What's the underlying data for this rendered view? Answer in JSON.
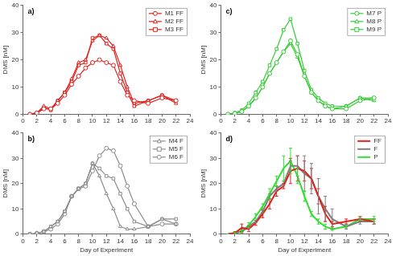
{
  "chart_data": [
    {
      "type": "line",
      "title": "a)",
      "y_label": "DMS [nM]",
      "x": [
        1,
        2,
        3,
        4,
        5,
        6,
        7,
        8,
        9,
        10,
        11,
        12,
        13,
        14,
        15,
        16,
        18,
        20,
        22
      ],
      "series": [
        {
          "name": "M1 FF",
          "color": "#e0201b",
          "marker": "circle",
          "line_style": "solid",
          "values": [
            0,
            0.5,
            2,
            2,
            4,
            7,
            11,
            14,
            17,
            19,
            20,
            19,
            18,
            12,
            7,
            5,
            4,
            6,
            5
          ]
        },
        {
          "name": "M2 FF",
          "color": "#e0201b",
          "marker": "triangle",
          "line_style": "solid",
          "values": [
            0,
            0.5,
            3,
            2,
            5,
            8,
            13,
            19,
            20,
            27,
            29,
            28,
            25,
            18,
            10,
            4,
            5,
            7,
            4
          ]
        },
        {
          "name": "M3 FF",
          "color": "#e0201b",
          "marker": "square",
          "line_style": "solid",
          "values": [
            0,
            0.3,
            2.5,
            1.5,
            5,
            8,
            12,
            18,
            19,
            28,
            29,
            26,
            24,
            15,
            8,
            3,
            5,
            7,
            5
          ]
        }
      ],
      "xlim": [
        0,
        24
      ],
      "xticks": [
        0,
        2,
        4,
        6,
        8,
        10,
        12,
        14,
        16,
        18,
        20,
        22,
        24
      ],
      "ylim": [
        0,
        40
      ],
      "yticks": [
        0,
        10,
        20,
        30,
        40
      ],
      "grid": false,
      "legend": "upper right"
    },
    {
      "type": "line",
      "title": "c)",
      "y_label": "DMS [nM]",
      "x": [
        1,
        2,
        3,
        4,
        5,
        6,
        7,
        8,
        9,
        10,
        11,
        12,
        13,
        14,
        15,
        16,
        18,
        20,
        22
      ],
      "series": [
        {
          "name": "M7 P",
          "color": "#33cc33",
          "marker": "circle",
          "line_style": "solid",
          "values": [
            0,
            0.3,
            1,
            3,
            6,
            10,
            15,
            19,
            23,
            27,
            22,
            14,
            8,
            5,
            3,
            2,
            2,
            5,
            6
          ]
        },
        {
          "name": "M8 P",
          "color": "#33cc33",
          "marker": "triangle",
          "line_style": "solid",
          "values": [
            0,
            0.3,
            1,
            3,
            6,
            10,
            15,
            19,
            23,
            26,
            21,
            14,
            8,
            5,
            3,
            2,
            3,
            6,
            5
          ]
        },
        {
          "name": "M9 P",
          "color": "#33cc33",
          "marker": "square",
          "line_style": "solid",
          "values": [
            0,
            0.5,
            1.5,
            4,
            8,
            12,
            18,
            24,
            31,
            35,
            26,
            16,
            9,
            6,
            4,
            3,
            3,
            6,
            6
          ]
        }
      ],
      "xlim": [
        0,
        24
      ],
      "xticks": [
        0,
        2,
        4,
        6,
        8,
        10,
        12,
        14,
        16,
        18,
        20,
        22,
        24
      ],
      "ylim": [
        0,
        40
      ],
      "yticks": [
        0,
        10,
        20,
        30,
        40
      ],
      "grid": false,
      "legend": "upper right"
    },
    {
      "type": "line",
      "title": "b)",
      "x_label": "Day of Experiment",
      "y_label": "DMS [nM]",
      "x": [
        1,
        2,
        3,
        4,
        5,
        6,
        7,
        8,
        9,
        10,
        11,
        12,
        13,
        14,
        15,
        16,
        18,
        20,
        22
      ],
      "series": [
        {
          "name": "M4 F",
          "color": "#8c8c8c",
          "marker": "triangle",
          "line_style": "solid",
          "values": [
            0,
            0.5,
            1,
            3,
            5,
            9,
            15,
            18,
            20,
            28,
            23,
            16,
            10,
            3,
            2,
            2,
            3,
            6,
            4
          ]
        },
        {
          "name": "M5 F",
          "color": "#8c8c8c",
          "marker": "square",
          "line_style": "solid",
          "values": [
            0,
            0.3,
            1,
            3,
            5,
            9,
            15,
            18,
            20,
            28,
            26,
            23,
            22,
            16,
            10,
            5,
            3,
            6,
            6
          ]
        },
        {
          "name": "M6 F",
          "color": "#8c8c8c",
          "marker": "circle",
          "line_style": "solid",
          "values": [
            0,
            0.3,
            1,
            2,
            4,
            8,
            15,
            18,
            19,
            25,
            31,
            34,
            33,
            27,
            19,
            12,
            3,
            4,
            4
          ]
        }
      ],
      "xlim": [
        0,
        24
      ],
      "xticks": [
        0,
        2,
        4,
        6,
        8,
        10,
        12,
        14,
        16,
        18,
        20,
        22,
        24
      ],
      "ylim": [
        0,
        40
      ],
      "yticks": [
        0,
        10,
        20,
        30,
        40
      ],
      "grid": false,
      "legend": "upper right"
    },
    {
      "type": "line",
      "title": "d)",
      "x_label": "Day of Experiment",
      "y_label": "DMS [nM]",
      "x": [
        1,
        2,
        3,
        4,
        5,
        6,
        7,
        8,
        9,
        10,
        11,
        12,
        13,
        14,
        15,
        16,
        18,
        20,
        22
      ],
      "series": [
        {
          "name": "FF",
          "color": "#e0201b",
          "marker": "none",
          "line_style": "solid",
          "values": [
            0,
            0.5,
            2.5,
            2,
            4.5,
            8,
            12,
            17,
            19,
            25,
            26,
            25,
            22,
            15,
            8,
            4,
            5,
            6,
            5
          ],
          "errors": [
            0,
            0.5,
            1.5,
            1,
            1,
            1.5,
            2,
            2,
            1,
            5,
            5,
            4,
            4,
            3,
            3,
            1,
            1,
            1,
            1
          ]
        },
        {
          "name": "F",
          "color": "#7f7f7f",
          "marker": "none",
          "line_style": "solid",
          "values": [
            0,
            0.4,
            1,
            3,
            5,
            9,
            15,
            18,
            20,
            27,
            27,
            24,
            22,
            15,
            10,
            6,
            3,
            5,
            5
          ],
          "errors": [
            0,
            0.3,
            0.5,
            0.5,
            0.5,
            0.5,
            1,
            1,
            1,
            2,
            4,
            7,
            6,
            7,
            5,
            4,
            1,
            1,
            1
          ]
        },
        {
          "name": "P",
          "color": "#33dd33",
          "marker": "none",
          "line_style": "solid",
          "values": [
            0,
            0.4,
            1.2,
            3.5,
            7,
            11,
            16,
            21,
            26,
            29,
            23,
            15,
            8,
            5,
            3,
            2,
            3,
            6,
            6
          ],
          "errors": [
            0,
            0.3,
            0.5,
            1,
            1,
            1,
            2,
            2,
            5,
            5,
            3,
            2,
            1,
            1,
            1,
            0.5,
            0.5,
            0.5,
            1
          ]
        }
      ],
      "xlim": [
        0,
        24
      ],
      "xticks": [
        0,
        2,
        4,
        6,
        8,
        10,
        12,
        14,
        16,
        18,
        20,
        22,
        24
      ],
      "ylim": [
        0,
        40
      ],
      "yticks": [
        0,
        10,
        20,
        30,
        40
      ],
      "grid": false,
      "legend": "upper right"
    }
  ]
}
